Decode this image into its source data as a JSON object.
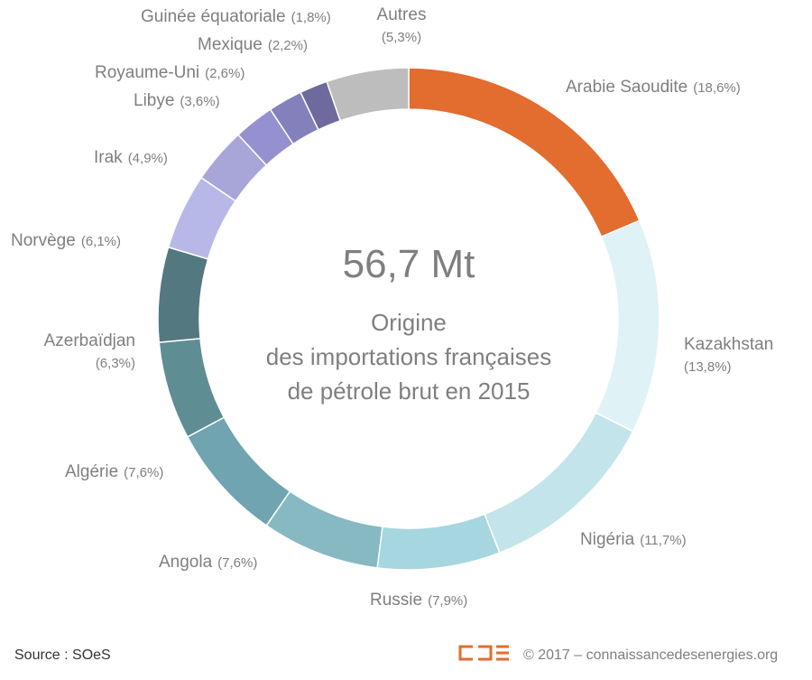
{
  "chart_data": {
    "type": "donut",
    "center_value": "56,7 Mt",
    "title_lines": [
      "Origine",
      "des importations françaises",
      "de pétrole brut en 2015"
    ],
    "categories": [
      "Arabie Saoudite",
      "Kazakhstan",
      "Nigéria",
      "Russie",
      "Angola",
      "Algérie",
      "Azerbaïdjan",
      "Norvège",
      "Irak",
      "Libye",
      "Royaume-Uni",
      "Mexique",
      "Guinée équatoriale",
      "Autres"
    ],
    "values": [
      18.6,
      13.8,
      11.7,
      7.9,
      7.6,
      7.6,
      6.3,
      6.1,
      4.9,
      3.6,
      2.6,
      2.2,
      1.8,
      5.3
    ],
    "value_labels": [
      "(18,6%)",
      "(13,8%)",
      "(11,7%)",
      "(7,9%)",
      "(7,6%)",
      "(7,6%)",
      "(6,3%)",
      "(6,1%)",
      "(4,9%)",
      "(3,6%)",
      "(2,6%)",
      "(2,2%)",
      "(1,8%)",
      "(5,3%)"
    ],
    "colors": [
      "#e36c2f",
      "#dff2f5",
      "#c3e4ea",
      "#a6d6e0",
      "#87b9c3",
      "#6fa4b0",
      "#5f8d94",
      "#537880",
      "#b8b8e8",
      "#a8a6d8",
      "#9590d0",
      "#8480bc",
      "#6e6a9e",
      "#bdbdbd"
    ],
    "source": "Source : SOeS",
    "credit": "© 2017 – connaissancedesenergies.org"
  }
}
